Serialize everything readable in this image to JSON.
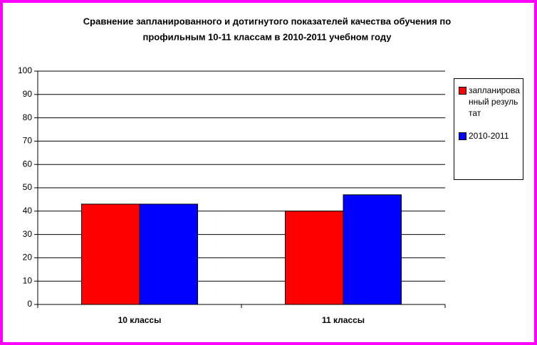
{
  "chart_data": {
    "type": "bar",
    "title": "Сравнение запланированного и дотигнутого показателей качества обучения по",
    "subtitle": "профильным 10-11  классам  в 2010-2011 учебном году",
    "categories": [
      "10 классы",
      "11 классы"
    ],
    "series": [
      {
        "name": "запланированный результат",
        "color": "#ff0000",
        "values": [
          43,
          40
        ]
      },
      {
        "name": "2010-2011",
        "color": "#0000ff",
        "values": [
          43,
          47
        ]
      }
    ],
    "ylim": [
      0,
      100
    ],
    "yticks": [
      0,
      10,
      20,
      30,
      40,
      50,
      60,
      70,
      80,
      90,
      100
    ],
    "grid": true,
    "legend": "right"
  }
}
